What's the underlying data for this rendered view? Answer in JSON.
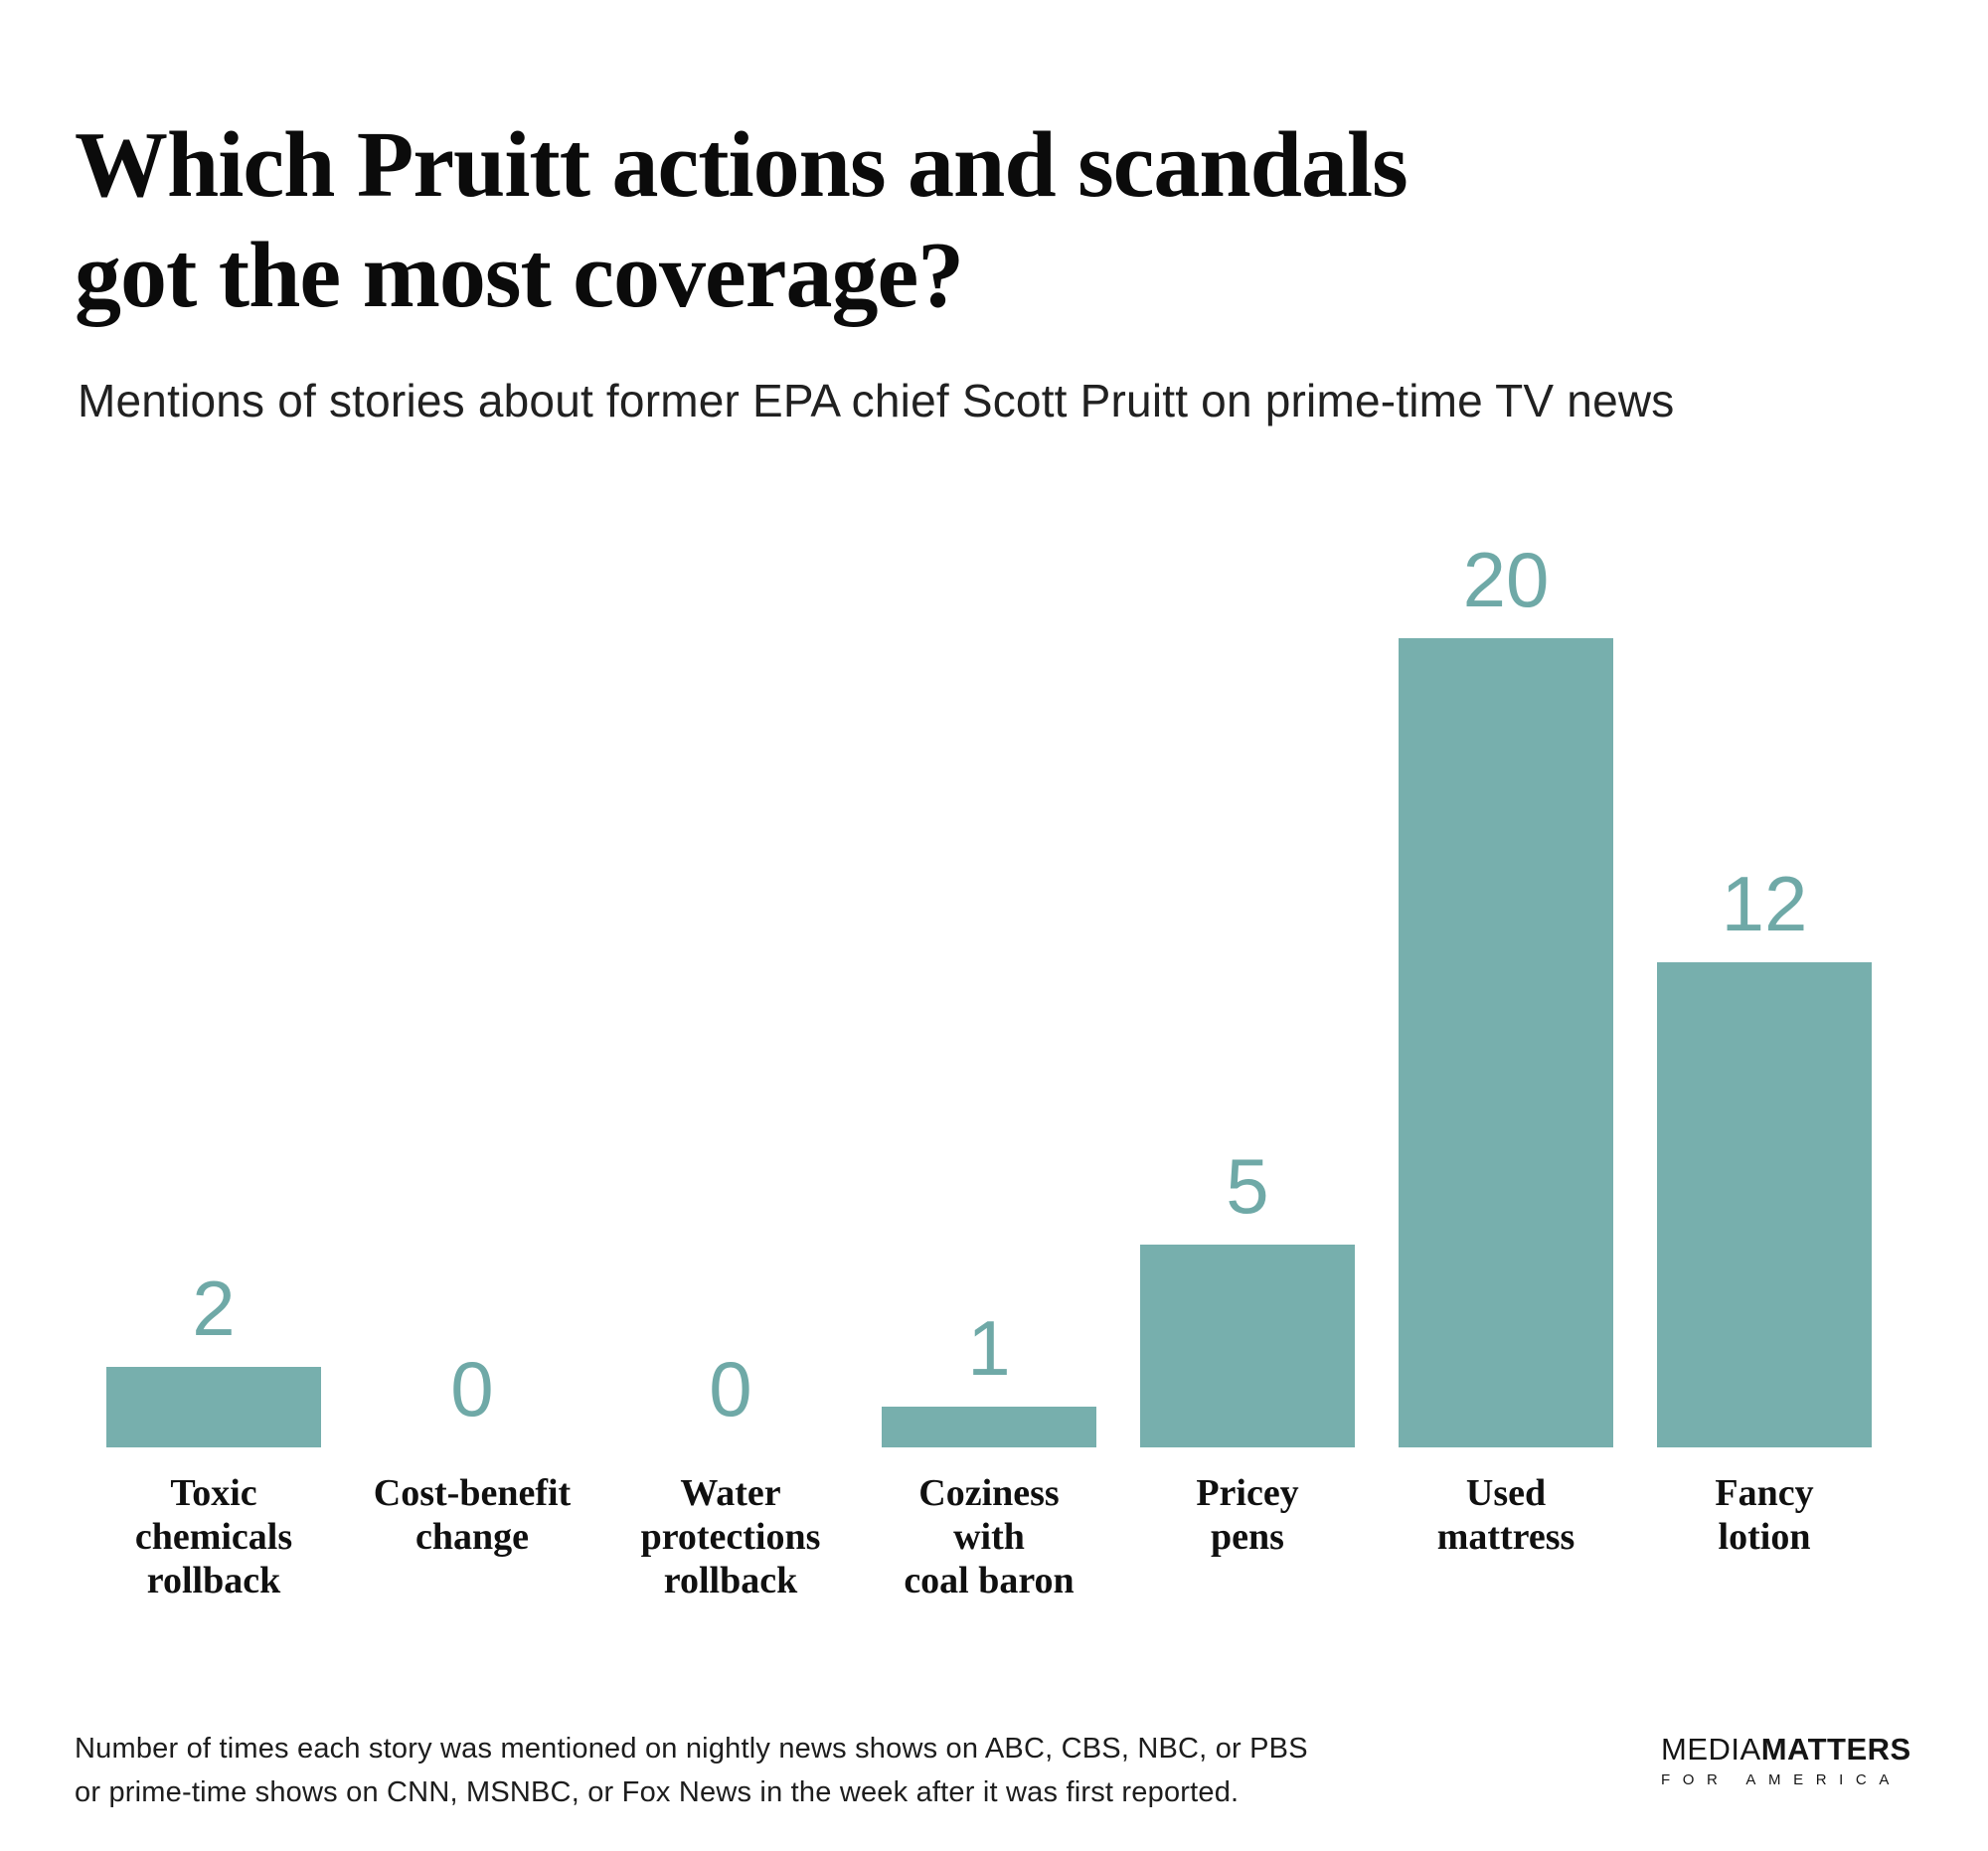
{
  "header": {
    "title_line1": "Which Pruitt actions and scandals",
    "title_line2": "got the most coverage?",
    "subtitle": "Mentions of stories about former EPA chief Scott Pruitt on prime-time TV news"
  },
  "chart_data": {
    "type": "bar",
    "title": "Which Pruitt actions and scandals got the most coverage?",
    "subtitle": "Mentions of stories about former EPA chief Scott Pruitt on prime-time TV news",
    "categories": [
      "Toxic chemicals rollback",
      "Cost-benefit change",
      "Water protections rollback",
      "Coziness with coal baron",
      "Pricey pens",
      "Used mattress",
      "Fancy lotion"
    ],
    "category_lines": [
      [
        "Toxic",
        "chemicals",
        "rollback"
      ],
      [
        "Cost-benefit",
        "change"
      ],
      [
        "Water",
        "protections",
        "rollback"
      ],
      [
        "Coziness",
        "with",
        "coal baron"
      ],
      [
        "Pricey",
        "pens"
      ],
      [
        "Used",
        "mattress"
      ],
      [
        "Fancy",
        "lotion"
      ]
    ],
    "values": [
      2,
      0,
      0,
      1,
      5,
      20,
      12
    ],
    "xlabel": "",
    "ylabel": "",
    "ylim": [
      0,
      20
    ],
    "grid": false,
    "legend": false,
    "value_labels": true,
    "bar_color": "#77afad",
    "value_label_color": "#6fa9a7"
  },
  "footnote": {
    "line1": "Number of times each story was mentioned on nightly news shows on ABC, CBS, NBC, or PBS",
    "line2": "or prime-time shows on CNN, MSNBC, or Fox News in the week after it was first reported."
  },
  "logo": {
    "part1": "MEDIA",
    "part2": "MATTERS",
    "tagline": "FOR AMERICA"
  }
}
